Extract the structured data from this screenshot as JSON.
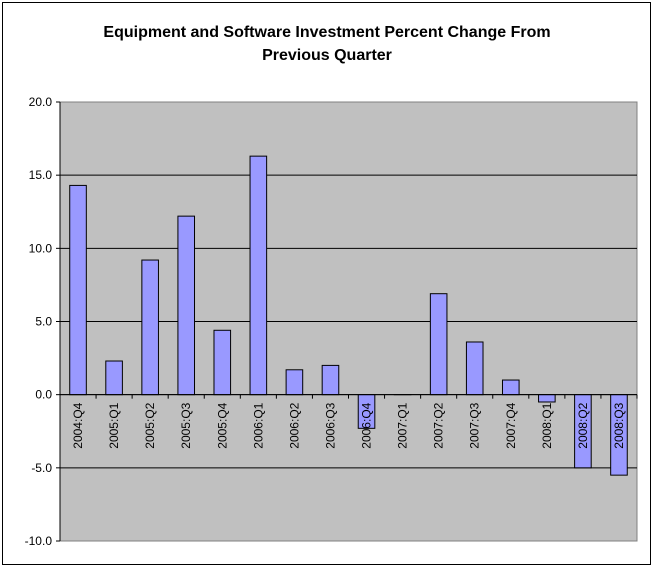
{
  "chart_data": {
    "type": "bar",
    "title_lines": [
      "Equipment and Software Investment Percent Change From",
      "Previous Quarter"
    ],
    "xlabel": "",
    "ylabel": "",
    "ylim": [
      -10,
      20
    ],
    "yticks": [
      "20.0",
      "15.0",
      "10.0",
      "5.0",
      "0.0",
      "-5.0",
      "-10.0"
    ],
    "ytick_values": [
      20,
      15,
      10,
      5,
      0,
      -5,
      -10
    ],
    "grid": true,
    "legend": "none",
    "categories": [
      "2004:Q4",
      "2005:Q1",
      "2005:Q2",
      "2005:Q3",
      "2005:Q4",
      "2006:Q1",
      "2006:Q2",
      "2006:Q3",
      "2006:Q4",
      "2007:Q1",
      "2007:Q2",
      "2007:Q3",
      "2007:Q4",
      "2008:Q1",
      "2008:Q2",
      "2008:Q3"
    ],
    "values": [
      14.3,
      2.3,
      9.2,
      12.2,
      4.4,
      16.3,
      1.7,
      2.0,
      -2.3,
      0.0,
      6.9,
      3.6,
      1.0,
      -0.5,
      -5.0,
      -5.5
    ],
    "colors": {
      "bar_fill": "#9999ff",
      "bar_stroke": "#000000",
      "plot_bg": "#c0c0c0",
      "grid": "#000000"
    }
  }
}
